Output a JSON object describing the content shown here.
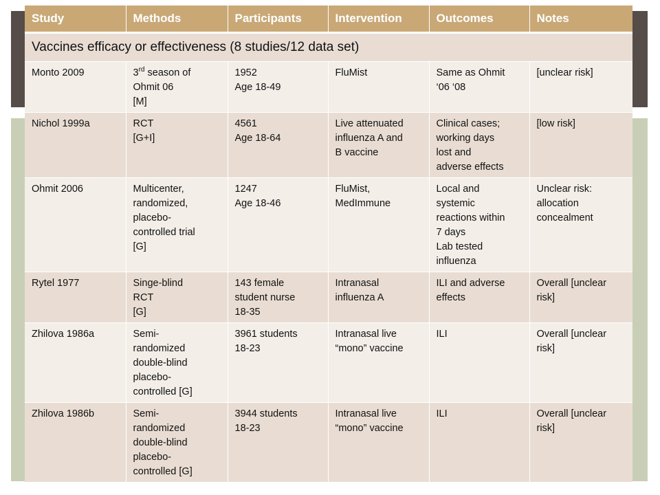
{
  "headers": [
    "Study",
    "Methods",
    "Participants",
    "Intervention",
    "Outcomes",
    "Notes"
  ],
  "section_title": "Vaccines efficacy or effectiveness (8 studies/12 data set)",
  "rows": [
    {
      "study": "Monto 2009",
      "methods_parts": {
        "pre": "3",
        "sup": "rd",
        "post": " season of"
      },
      "methods": [
        "Ohmit 06",
        "[M]"
      ],
      "participants": [
        "1952",
        "Age 18-49"
      ],
      "intervention": [
        "FluMist"
      ],
      "outcomes": [
        "Same as Ohmit",
        "‘06 ‘08"
      ],
      "notes": [
        "[unclear risk]"
      ]
    },
    {
      "study": "Nichol 1999a",
      "methods": [
        "RCT",
        "[G+I]"
      ],
      "participants": [
        "4561",
        "Age 18-64"
      ],
      "intervention": [
        "Live attenuated",
        "influenza A and",
        "B vaccine"
      ],
      "outcomes": [
        "Clinical cases;",
        "working days",
        "lost and",
        "adverse effects"
      ],
      "notes": [
        "[low risk]"
      ]
    },
    {
      "study": "Ohmit 2006",
      "methods": [
        "Multicenter,",
        "randomized,",
        "placebo-",
        "controlled trial",
        "[G]"
      ],
      "participants": [
        "1247",
        "Age 18-46"
      ],
      "intervention": [
        "FluMist,",
        "MedImmune"
      ],
      "outcomes": [
        "Local and",
        "systemic",
        "reactions within",
        "7 days",
        "Lab tested",
        "influenza"
      ],
      "notes": [
        "Unclear risk:",
        "allocation",
        "concealment"
      ]
    },
    {
      "study": "Rytel 1977",
      "methods": [
        "Singe-blind",
        "RCT",
        "[G]"
      ],
      "participants": [
        "143 female",
        "student nurse",
        "18-35"
      ],
      "intervention": [
        "Intranasal",
        "influenza A"
      ],
      "outcomes": [
        "ILI and adverse",
        "effects"
      ],
      "notes": [
        "Overall [unclear",
        "risk]"
      ]
    },
    {
      "study": "Zhilova 1986a",
      "methods": [
        "Semi-",
        "randomized",
        "double-blind",
        "placebo-",
        "controlled [G]"
      ],
      "participants": [
        "3961 students",
        "18-23"
      ],
      "intervention": [
        "Intranasal live",
        "“mono” vaccine"
      ],
      "outcomes": [
        "ILI"
      ],
      "notes": [
        "Overall [unclear",
        "risk]"
      ]
    },
    {
      "study": "Zhilova 1986b",
      "methods": [
        "Semi-",
        "randomized",
        "double-blind",
        "placebo-",
        "controlled [G]"
      ],
      "participants": [
        "3944 students",
        "18-23"
      ],
      "intervention": [
        "Intranasal live",
        "“mono” vaccine"
      ],
      "outcomes": [
        "ILI"
      ],
      "notes": [
        "Overall [unclear",
        "risk]"
      ]
    }
  ]
}
